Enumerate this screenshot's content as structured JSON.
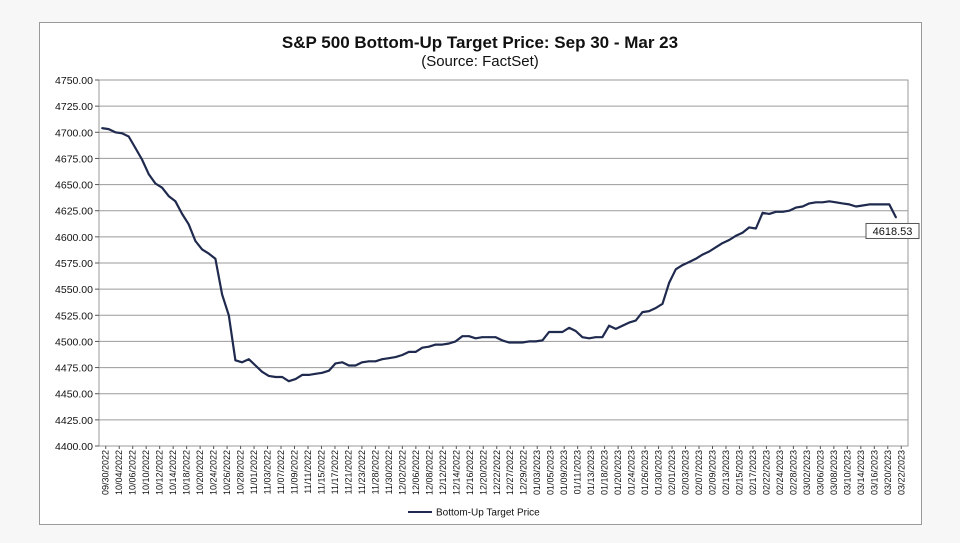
{
  "colors": {
    "line": "#1f2a4e",
    "grid": "#9a9a9a",
    "axis": "#555555",
    "frame_border": "#9a9a9a",
    "page_background": "#f7f7f7"
  },
  "chart_data": {
    "type": "line",
    "title": "S&P 500 Bottom-Up Target Price: Sep 30 - Mar 23",
    "subtitle": "(Source: FactSet)",
    "xlabel": "",
    "ylabel": "",
    "ylim": [
      4400,
      4750
    ],
    "grid": true,
    "legend_position": "bottom",
    "y_ticks": [
      "4750.00",
      "4725.00",
      "4700.00",
      "4675.00",
      "4650.00",
      "4625.00",
      "4600.00",
      "4575.00",
      "4550.00",
      "4525.00",
      "4500.00",
      "4475.00",
      "4450.00",
      "4425.00",
      "4400.00"
    ],
    "x_ticks": [
      "09/30/2022",
      "10/04/2022",
      "10/06/2022",
      "10/10/2022",
      "10/12/2022",
      "10/14/2022",
      "10/18/2022",
      "10/20/2022",
      "10/24/2022",
      "10/26/2022",
      "10/28/2022",
      "11/01/2022",
      "11/03/2022",
      "11/07/2022",
      "11/09/2022",
      "11/11/2022",
      "11/15/2022",
      "11/17/2022",
      "11/21/2022",
      "11/23/2022",
      "11/28/2022",
      "11/30/2022",
      "12/02/2022",
      "12/06/2022",
      "12/08/2022",
      "12/12/2022",
      "12/14/2022",
      "12/16/2022",
      "12/20/2022",
      "12/22/2022",
      "12/27/2022",
      "12/29/2022",
      "01/03/2023",
      "01/05/2023",
      "01/09/2023",
      "01/11/2023",
      "01/13/2023",
      "01/18/2023",
      "01/20/2023",
      "01/24/2023",
      "01/26/2023",
      "01/30/2023",
      "02/01/2023",
      "02/03/2023",
      "02/07/2023",
      "02/09/2023",
      "02/13/2023",
      "02/15/2023",
      "02/17/2023",
      "02/22/2023",
      "02/24/2023",
      "02/28/2023",
      "03/02/2023",
      "03/06/2023",
      "03/08/2023",
      "03/10/2023",
      "03/14/2023",
      "03/16/2023",
      "03/20/2023",
      "03/22/2023"
    ],
    "series": [
      {
        "name": "Bottom-Up Target Price",
        "values": [
          4704,
          4703,
          4700,
          4699,
          4696,
          4685,
          4674,
          4660,
          4651,
          4647,
          4639,
          4634,
          4622,
          4612,
          4596,
          4588,
          4584,
          4579,
          4545,
          4525,
          4482,
          4480,
          4483,
          4477,
          4471,
          4467,
          4466,
          4466,
          4462,
          4464,
          4468,
          4468,
          4469,
          4470,
          4472,
          4479,
          4480,
          4477,
          4477,
          4480,
          4481,
          4481,
          4483,
          4484,
          4485,
          4487,
          4490,
          4490,
          4494,
          4495,
          4497,
          4497,
          4498,
          4500,
          4505,
          4505,
          4503,
          4504,
          4504,
          4504,
          4501,
          4499,
          4499,
          4499,
          4500,
          4500,
          4501,
          4509,
          4509,
          4509,
          4513,
          4510,
          4504,
          4503,
          4504,
          4504,
          4515,
          4512,
          4515,
          4518,
          4520,
          4528,
          4529,
          4532,
          4536,
          4556,
          4569,
          4573,
          4576,
          4579,
          4583,
          4586,
          4590,
          4594,
          4597,
          4601,
          4604,
          4609,
          4608,
          4623,
          4622,
          4624,
          4624,
          4625,
          4628,
          4629,
          4632,
          4633,
          4633,
          4634,
          4633,
          4632,
          4631,
          4629,
          4630,
          4631,
          4631,
          4631,
          4631,
          4618.53
        ],
        "last_label": "4618.53"
      }
    ]
  }
}
